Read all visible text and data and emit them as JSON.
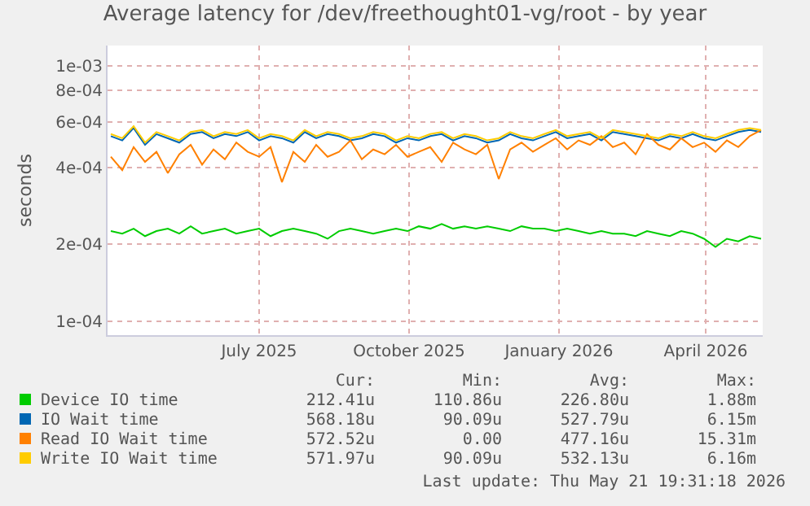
{
  "chart_data": {
    "type": "line",
    "title": "Average latency for /dev/freethought01-vg/root - by year",
    "ylabel": "seconds",
    "x": [
      "2025-04-16",
      "2025-04-23",
      "2025-04-30",
      "2025-05-07",
      "2025-05-14",
      "2025-05-21",
      "2025-05-28",
      "2025-06-04",
      "2025-06-11",
      "2025-06-18",
      "2025-06-25",
      "2025-07-02",
      "2025-07-09",
      "2025-07-16",
      "2025-07-23",
      "2025-07-30",
      "2025-08-06",
      "2025-08-13",
      "2025-08-20",
      "2025-08-27",
      "2025-09-03",
      "2025-09-10",
      "2025-09-17",
      "2025-09-24",
      "2025-10-01",
      "2025-10-08",
      "2025-10-15",
      "2025-10-22",
      "2025-10-29",
      "2025-11-05",
      "2025-11-12",
      "2025-11-19",
      "2025-11-26",
      "2025-12-03",
      "2025-12-10",
      "2025-12-17",
      "2025-12-24",
      "2025-12-31",
      "2026-01-07",
      "2026-01-14",
      "2026-01-21",
      "2026-01-28",
      "2026-02-04",
      "2026-02-11",
      "2026-02-18",
      "2026-02-25",
      "2026-03-04",
      "2026-03-11",
      "2026-03-18",
      "2026-03-25",
      "2026-04-01",
      "2026-04-08",
      "2026-04-15",
      "2026-04-22",
      "2026-04-29",
      "2026-05-06",
      "2026-05-13",
      "2026-05-20"
    ],
    "series": [
      {
        "name": "Device IO time",
        "color": "#00cc00",
        "values": [
          0.000225,
          0.00022,
          0.00023,
          0.000215,
          0.000225,
          0.00023,
          0.00022,
          0.000235,
          0.00022,
          0.000225,
          0.00023,
          0.00022,
          0.000225,
          0.00023,
          0.000215,
          0.000225,
          0.00023,
          0.000225,
          0.00022,
          0.00021,
          0.000225,
          0.00023,
          0.000225,
          0.00022,
          0.000225,
          0.00023,
          0.000225,
          0.000235,
          0.00023,
          0.00024,
          0.00023,
          0.000235,
          0.00023,
          0.000235,
          0.00023,
          0.000225,
          0.000235,
          0.00023,
          0.00023,
          0.000225,
          0.00023,
          0.000225,
          0.00022,
          0.000225,
          0.00022,
          0.00022,
          0.000215,
          0.000225,
          0.00022,
          0.000215,
          0.000225,
          0.00022,
          0.00021,
          0.000195,
          0.00021,
          0.000205,
          0.000215,
          0.00021
        ]
      },
      {
        "name": "IO Wait time",
        "color": "#0066b3",
        "values": [
          0.00053,
          0.00051,
          0.00057,
          0.00049,
          0.00054,
          0.00052,
          0.0005,
          0.00054,
          0.00055,
          0.00052,
          0.00054,
          0.00053,
          0.00055,
          0.00051,
          0.00053,
          0.00052,
          0.0005,
          0.00055,
          0.00052,
          0.00054,
          0.00053,
          0.00051,
          0.00052,
          0.00054,
          0.00053,
          0.0005,
          0.00052,
          0.00051,
          0.00053,
          0.00054,
          0.00051,
          0.00053,
          0.00052,
          0.0005,
          0.00051,
          0.00054,
          0.00052,
          0.00051,
          0.00053,
          0.00055,
          0.00052,
          0.00053,
          0.00054,
          0.00051,
          0.00055,
          0.00054,
          0.00053,
          0.00052,
          0.00051,
          0.00053,
          0.00052,
          0.00054,
          0.00052,
          0.00051,
          0.00053,
          0.00055,
          0.00056,
          0.00055
        ]
      },
      {
        "name": "Read IO Wait time",
        "color": "#ff8000",
        "values": [
          0.00044,
          0.00039,
          0.00048,
          0.00042,
          0.00046,
          0.00038,
          0.00045,
          0.00049,
          0.00041,
          0.00047,
          0.00043,
          0.0005,
          0.00046,
          0.00044,
          0.00048,
          0.00035,
          0.00046,
          0.00042,
          0.00049,
          0.00044,
          0.00046,
          0.00051,
          0.00043,
          0.00047,
          0.00045,
          0.00049,
          0.00044,
          0.00046,
          0.00048,
          0.00042,
          0.0005,
          0.00047,
          0.00045,
          0.00049,
          0.00036,
          0.00047,
          0.0005,
          0.00046,
          0.00049,
          0.00052,
          0.00047,
          0.00051,
          0.00049,
          0.00053,
          0.00048,
          0.0005,
          0.00045,
          0.00054,
          0.00049,
          0.00047,
          0.00052,
          0.00048,
          0.0005,
          0.00046,
          0.00051,
          0.00048,
          0.00053,
          0.00056
        ]
      },
      {
        "name": "Write IO Wait time",
        "color": "#ffcc00",
        "values": [
          0.00054,
          0.00052,
          0.00058,
          0.0005,
          0.00055,
          0.00053,
          0.00051,
          0.00055,
          0.00056,
          0.00053,
          0.00055,
          0.00054,
          0.00056,
          0.00052,
          0.00054,
          0.00053,
          0.00051,
          0.00056,
          0.00053,
          0.00055,
          0.00054,
          0.00052,
          0.00053,
          0.00055,
          0.00054,
          0.00051,
          0.00053,
          0.00052,
          0.00054,
          0.00055,
          0.00052,
          0.00054,
          0.00053,
          0.00051,
          0.00052,
          0.00055,
          0.00053,
          0.00052,
          0.00054,
          0.00056,
          0.00053,
          0.00054,
          0.00055,
          0.00052,
          0.00056,
          0.00055,
          0.00054,
          0.00053,
          0.00052,
          0.00054,
          0.00053,
          0.00055,
          0.00053,
          0.00052,
          0.00054,
          0.00056,
          0.00057,
          0.00056
        ]
      }
    ],
    "log": true,
    "xlim": [
      "2025-04-14",
      "2026-05-21"
    ],
    "xticks": [
      {
        "value": "2025-07-16",
        "label": "July 2025"
      },
      {
        "value": "2025-10-16",
        "label": "October 2025"
      },
      {
        "value": "2026-01-16",
        "label": "January 2026"
      },
      {
        "value": "2026-04-16",
        "label": "April 2026"
      }
    ],
    "ylim": [
      8.8e-05,
      0.0012
    ],
    "yticks": [
      {
        "value": 0.0001,
        "label": "1e-04"
      },
      {
        "value": 0.0002,
        "label": "2e-04"
      },
      {
        "value": 0.0004,
        "label": "4e-04"
      },
      {
        "value": 0.0006,
        "label": "6e-04"
      },
      {
        "value": 0.0008,
        "label": "8e-04"
      },
      {
        "value": 0.001,
        "label": "1e-03"
      }
    ],
    "grid": true,
    "legend": "bottom",
    "marker": "none",
    "line_style": "solid",
    "annotations": [
      "Cur:",
      "Min:",
      "Avg:",
      "Max:",
      "212.41u",
      "110.86u",
      "226.80u",
      "1.88m",
      "568.18u",
      "90.09u",
      "527.79u",
      "6.15m",
      "572.52u",
      "0.00",
      "477.16u",
      "15.31m",
      "571.97u",
      "90.09u",
      "532.13u",
      "6.16m",
      "Last update: Thu May 21 19:31:18 2026"
    ]
  }
}
